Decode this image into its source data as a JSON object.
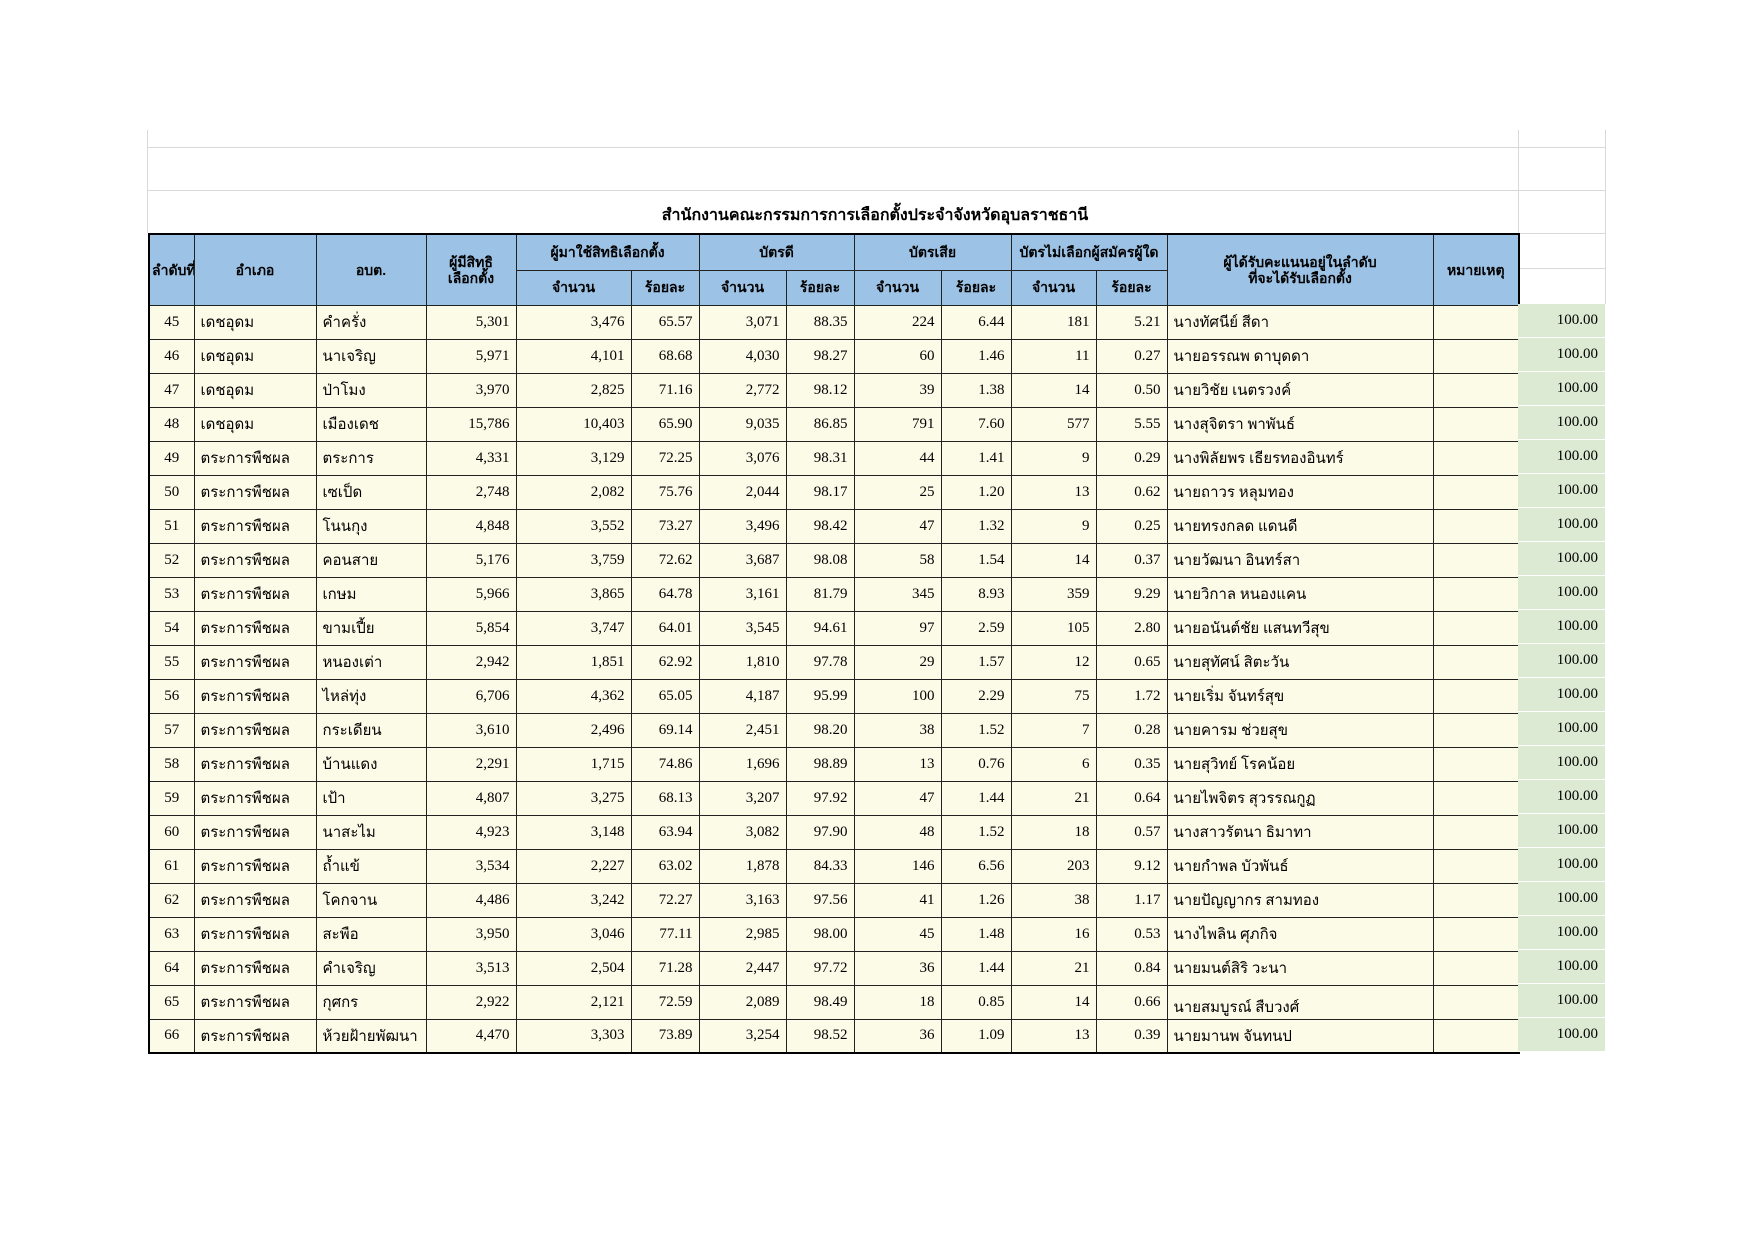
{
  "title": "สำนักงานคณะกรรมการการเลือกตั้งประจำจังหวัดอุบลราชธานี",
  "colors": {
    "header_bg": "#9cc2e5",
    "row_bg": "#fcfbe8",
    "highlight_bg": "#ffffff",
    "green_bg": "#dcead3",
    "border": "#222222",
    "gridline": "#d9d9d9"
  },
  "table": {
    "headers": {
      "no": "ลำดับที่",
      "district": "อำเภอ",
      "subdistrict": "อบต.",
      "eligible_l1": "ผู้มีสิทธิ",
      "eligible_l2": "เลือกตั้ง",
      "turnout_group": "ผู้มาใช้สิทธิเลือกตั้ง",
      "good_group": "บัตรดี",
      "bad_group": "บัตรเสีย",
      "novote_group": "บัตรไม่เลือกผู้สมัครผู้ใด",
      "count": "จำนวน",
      "percent": "ร้อยละ",
      "winner_l1": "ผู้ได้รับคะแนนอยู่ในลำดับ",
      "winner_l2": "ที่จะได้รับเลือกตั้ง",
      "note": "หมายเหตุ"
    },
    "rows": [
      {
        "no": "45",
        "district": "เดชอุดม",
        "subdistrict": "คำครั่ง",
        "eligible": "5,301",
        "turnout": "3,476",
        "turnout_pct": "65.57",
        "good": "3,071",
        "good_pct": "88.35",
        "bad": "224",
        "bad_pct": "6.44",
        "novote": "181",
        "novote_pct": "5.21",
        "winner": "นางทัศนีย์ สีดา",
        "note": "",
        "extra": "100.00"
      },
      {
        "no": "46",
        "district": "เดชอุดม",
        "subdistrict": "นาเจริญ",
        "eligible": "5,971",
        "turnout": "4,101",
        "turnout_pct": "68.68",
        "good": "4,030",
        "good_pct": "98.27",
        "bad": "60",
        "bad_pct": "1.46",
        "novote": "11",
        "novote_pct": "0.27",
        "winner": "นายอรรณพ  ดาบุดดา",
        "note": "",
        "extra": "100.00"
      },
      {
        "no": "47",
        "district": "เดชอุดม",
        "subdistrict": "ป่าโมง",
        "eligible": "3,970",
        "turnout": "2,825",
        "turnout_pct": "71.16",
        "good": "2,772",
        "good_pct": "98.12",
        "bad": "39",
        "bad_pct": "1.38",
        "novote": "14",
        "novote_pct": "0.50",
        "winner": "นายวิชัย เนตรวงค์",
        "note": "",
        "extra": "100.00"
      },
      {
        "no": "48",
        "district": "เดชอุดม",
        "subdistrict": "เมืองเดช",
        "eligible": "15,786",
        "turnout": "10,403",
        "turnout_pct": "65.90",
        "good": "9,035",
        "good_pct": "86.85",
        "bad": "791",
        "bad_pct": "7.60",
        "novote": "577",
        "novote_pct": "5.55",
        "winner": "นางสุจิตรา พาพันธ์",
        "note": "",
        "extra": "100.00"
      },
      {
        "no": "49",
        "district": "ตระการพืชผล",
        "subdistrict": "ตระการ",
        "eligible": "4,331",
        "turnout": "3,129",
        "turnout_pct": "72.25",
        "good": "3,076",
        "good_pct": "98.31",
        "bad": "44",
        "bad_pct": "1.41",
        "novote": "9",
        "novote_pct": "0.29",
        "winner": "นางพิลัยพร  เธียรทองอินทร์",
        "note": "",
        "extra": "100.00"
      },
      {
        "no": "50",
        "district": "ตระการพืชผล",
        "subdistrict": "เซเป็ด",
        "eligible": "2,748",
        "turnout": "2,082",
        "turnout_pct": "75.76",
        "good": "2,044",
        "good_pct": "98.17",
        "bad": "25",
        "bad_pct": "1.20",
        "novote": "13",
        "novote_pct": "0.62",
        "winner": "นายถาวร  หลุมทอง",
        "note": "",
        "extra": "100.00"
      },
      {
        "no": "51",
        "district": "ตระการพืชผล",
        "subdistrict": "โนนกุง",
        "eligible": "4,848",
        "turnout": "3,552",
        "turnout_pct": "73.27",
        "good": "3,496",
        "good_pct": "98.42",
        "bad": "47",
        "bad_pct": "1.32",
        "novote": "9",
        "novote_pct": "0.25",
        "winner": "นายทรงกลด  แดนดี",
        "note": "",
        "extra": "100.00"
      },
      {
        "no": "52",
        "district": "ตระการพืชผล",
        "subdistrict": "คอนสาย",
        "eligible": "5,176",
        "turnout": "3,759",
        "turnout_pct": "72.62",
        "good": "3,687",
        "good_pct": "98.08",
        "bad": "58",
        "bad_pct": "1.54",
        "novote": "14",
        "novote_pct": "0.37",
        "winner": "นายวัฒนา  อินทร์สา",
        "note": "",
        "extra": "100.00"
      },
      {
        "no": "53",
        "district": "ตระการพืชผล",
        "subdistrict": "เกษม",
        "eligible": "5,966",
        "turnout": "3,865",
        "turnout_pct": "64.78",
        "good": "3,161",
        "good_pct": "81.79",
        "bad": "345",
        "bad_pct": "8.93",
        "novote": "359",
        "novote_pct": "9.29",
        "winner": "นายวิกาล  หนองแคน",
        "note": "",
        "extra": "100.00"
      },
      {
        "no": "54",
        "district": "ตระการพืชผล",
        "subdistrict": "ขามเปี้ย",
        "eligible": "5,854",
        "turnout": "3,747",
        "turnout_pct": "64.01",
        "good": "3,545",
        "good_pct": "94.61",
        "bad": "97",
        "bad_pct": "2.59",
        "novote": "105",
        "novote_pct": "2.80",
        "winner": "นายอนันต์ชัย แสนทวีสุข",
        "note": "",
        "extra": "100.00"
      },
      {
        "no": "55",
        "district": "ตระการพืชผล",
        "subdistrict": "หนองเต่า",
        "eligible": "2,942",
        "turnout": "1,851",
        "turnout_pct": "62.92",
        "good": "1,810",
        "good_pct": "97.78",
        "bad": "29",
        "bad_pct": "1.57",
        "novote": "12",
        "novote_pct": "0.65",
        "winner": "นายสุทัศน์ สิตะวัน",
        "note": "",
        "extra": "100.00"
      },
      {
        "no": "56",
        "district": "ตระการพืชผล",
        "subdistrict": "ไหล่ทุ่ง",
        "eligible": "6,706",
        "turnout": "4,362",
        "turnout_pct": "65.05",
        "good": "4,187",
        "good_pct": "95.99",
        "bad": "100",
        "bad_pct": "2.29",
        "novote": "75",
        "novote_pct": "1.72",
        "winner": "นายเริ่ม  จันทร์สุข",
        "note": "",
        "extra": "100.00"
      },
      {
        "no": "57",
        "district": "ตระการพืชผล",
        "subdistrict": "กระเดียน",
        "eligible": "3,610",
        "turnout": "2,496",
        "turnout_pct": "69.14",
        "good": "2,451",
        "good_pct": "98.20",
        "bad": "38",
        "bad_pct": "1.52",
        "novote": "7",
        "novote_pct": "0.28",
        "winner": "นายคารม  ช่วยสุข",
        "note": "",
        "extra": "100.00"
      },
      {
        "no": "58",
        "district": "ตระการพืชผล",
        "subdistrict": "บ้านแดง",
        "eligible": "2,291",
        "turnout": "1,715",
        "turnout_pct": "74.86",
        "good": "1,696",
        "good_pct": "98.89",
        "bad": "13",
        "bad_pct": "0.76",
        "novote": "6",
        "novote_pct": "0.35",
        "winner": "นายสุวิทย์ โรคน้อย",
        "note": "",
        "extra": "100.00"
      },
      {
        "no": "59",
        "district": "ตระการพืชผล",
        "subdistrict": "เป้า",
        "eligible": "4,807",
        "turnout": "3,275",
        "turnout_pct": "68.13",
        "good": "3,207",
        "good_pct": "97.92",
        "bad": "47",
        "bad_pct": "1.44",
        "novote": "21",
        "novote_pct": "0.64",
        "winner": "นายไพจิตร สุวรรณกูฏ",
        "note": "",
        "extra": "100.00"
      },
      {
        "no": "60",
        "district": "ตระการพืชผล",
        "subdistrict": "นาสะไม",
        "eligible": "4,923",
        "turnout": "3,148",
        "turnout_pct": "63.94",
        "good": "3,082",
        "good_pct": "97.90",
        "bad": "48",
        "bad_pct": "1.52",
        "novote": "18",
        "novote_pct": "0.57",
        "winner": "นางสาวรัตนา   ธิมาทา",
        "note": "",
        "extra": "100.00"
      },
      {
        "no": "61",
        "district": "ตระการพืชผล",
        "subdistrict": "ถ้ำแข้",
        "eligible": "3,534",
        "turnout": "2,227",
        "turnout_pct": "63.02",
        "good": "1,878",
        "good_pct": "84.33",
        "bad": "146",
        "bad_pct": "6.56",
        "novote": "203",
        "novote_pct": "9.12",
        "winner": "นายกำพล บัวพันธ์",
        "note": "",
        "extra": "100.00"
      },
      {
        "no": "62",
        "district": "ตระการพืชผล",
        "subdistrict": "โคกจาน",
        "eligible": "4,486",
        "turnout": "3,242",
        "turnout_pct": "72.27",
        "good": "3,163",
        "good_pct": "97.56",
        "bad": "41",
        "bad_pct": "1.26",
        "novote": "38",
        "novote_pct": "1.17",
        "winner": "นายปัญญากร สามทอง",
        "note": "",
        "extra": "100.00"
      },
      {
        "no": "63",
        "district": "ตระการพืชผล",
        "subdistrict": "สะพือ",
        "eligible": "3,950",
        "turnout": "3,046",
        "turnout_pct": "77.11",
        "good": "2,985",
        "good_pct": "98.00",
        "bad": "45",
        "bad_pct": "1.48",
        "novote": "16",
        "novote_pct": "0.53",
        "winner": "นางไพลิน ศุภกิจ",
        "note": "",
        "extra": "100.00"
      },
      {
        "no": "64",
        "district": "ตระการพืชผล",
        "subdistrict": "คำเจริญ",
        "eligible": "3,513",
        "turnout": "2,504",
        "turnout_pct": "71.28",
        "good": "2,447",
        "good_pct": "97.72",
        "bad": "36",
        "bad_pct": "1.44",
        "novote": "21",
        "novote_pct": "0.84",
        "winner": "นายมนต์สิริ  วะนา",
        "note": "",
        "extra": "100.00"
      },
      {
        "no": "65",
        "district": "ตระการพืชผล",
        "subdistrict": "กุศกร",
        "eligible": "2,922",
        "turnout": "2,121",
        "turnout_pct": "72.59",
        "good": "2,089",
        "good_pct": "98.49",
        "bad": "18",
        "bad_pct": "0.85",
        "novote": "14",
        "novote_pct": "0.66",
        "winner": "นายสมบูรณ์ สืบวงศ์",
        "note": "",
        "highlight": true,
        "extra": "100.00"
      },
      {
        "no": "66",
        "district": "ตระการพืชผล",
        "subdistrict": "ห้วยฝ้ายพัฒนา",
        "eligible": "4,470",
        "turnout": "3,303",
        "turnout_pct": "73.89",
        "good": "3,254",
        "good_pct": "98.52",
        "bad": "36",
        "bad_pct": "1.09",
        "novote": "13",
        "novote_pct": "0.39",
        "winner": "นายมานพ  จันทนป",
        "note": "",
        "extra": "100.00"
      }
    ]
  }
}
